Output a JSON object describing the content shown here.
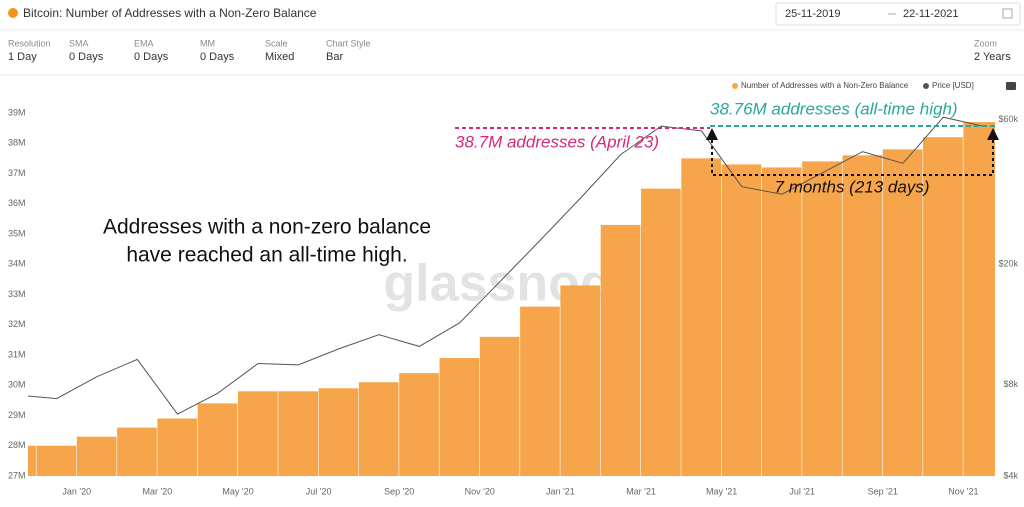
{
  "header": {
    "title": "Bitcoin: Number of Addresses with a Non-Zero Balance",
    "date_from": "25-11-2019",
    "date_to": "22-11-2021"
  },
  "controls": [
    {
      "label": "Resolution",
      "value": "1 Day"
    },
    {
      "label": "SMA",
      "value": "0 Days"
    },
    {
      "label": "EMA",
      "value": "0 Days"
    },
    {
      "label": "MM",
      "value": "0 Days"
    },
    {
      "label": "Scale",
      "value": "Mixed"
    },
    {
      "label": "Chart Style",
      "value": "Bar"
    },
    {
      "label": "Zoom",
      "value": "2 Years"
    }
  ],
  "chart_data": {
    "type": "bar",
    "x": [
      "2019-11",
      "2019-12",
      "2020-01",
      "2020-02",
      "2020-03",
      "2020-04",
      "2020-05",
      "2020-06",
      "2020-07",
      "2020-08",
      "2020-09",
      "2020-10",
      "2020-11",
      "2020-12",
      "2021-01",
      "2021-02",
      "2021-03",
      "2021-04",
      "2021-05",
      "2021-06",
      "2021-07",
      "2021-08",
      "2021-09",
      "2021-10",
      "2021-11"
    ],
    "series": [
      {
        "name": "Number of Addresses with a Non-Zero Balance",
        "color": "#f7a54a",
        "type": "bar",
        "values": [
          28000000,
          28000000,
          28300000,
          28600000,
          28900000,
          29400000,
          29800000,
          29800000,
          29900000,
          30100000,
          30400000,
          30900000,
          31600000,
          32600000,
          33300000,
          35300000,
          36500000,
          37500000,
          37300000,
          37200000,
          37400000,
          37600000,
          37800000,
          38200000,
          38700000
        ]
      },
      {
        "name": "Price [USD]",
        "color": "#555555",
        "type": "line",
        "axis": "y2",
        "values": [
          7400,
          7200,
          8500,
          9700,
          6400,
          7500,
          9400,
          9300,
          10500,
          11700,
          10700,
          12800,
          17500,
          24000,
          33000,
          46000,
          57000,
          55000,
          36000,
          34000,
          40000,
          47000,
          43000,
          61000,
          57000
        ]
      }
    ],
    "ylim": [
      27000000,
      39000000
    ],
    "yticks": [
      {
        "value": 27000000,
        "label": "27M"
      },
      {
        "value": 28000000,
        "label": "28M"
      },
      {
        "value": 29000000,
        "label": "29M"
      },
      {
        "value": 30000000,
        "label": "30M"
      },
      {
        "value": 31000000,
        "label": "31M"
      },
      {
        "value": 32000000,
        "label": "32M"
      },
      {
        "value": 33000000,
        "label": "33M"
      },
      {
        "value": 34000000,
        "label": "34M"
      },
      {
        "value": 35000000,
        "label": "35M"
      },
      {
        "value": 36000000,
        "label": "36M"
      },
      {
        "value": 37000000,
        "label": "37M"
      },
      {
        "value": 38000000,
        "label": "38M"
      },
      {
        "value": 39000000,
        "label": "39M"
      }
    ],
    "y2lim": [
      4000,
      63000
    ],
    "y2scale": "log",
    "y2ticks": [
      {
        "value": 4000,
        "label": "$4k"
      },
      {
        "value": 8000,
        "label": "$8k"
      },
      {
        "value": 20000,
        "label": "$20k"
      },
      {
        "value": 60000,
        "label": "$60k"
      }
    ],
    "xticks": [
      {
        "value": "2020-01",
        "label": "Jan '20"
      },
      {
        "value": "2020-03",
        "label": "Mar '20"
      },
      {
        "value": "2020-05",
        "label": "May '20"
      },
      {
        "value": "2020-07",
        "label": "Jul '20"
      },
      {
        "value": "2020-09",
        "label": "Sep '20"
      },
      {
        "value": "2020-11",
        "label": "Nov '20"
      },
      {
        "value": "2021-01",
        "label": "Jan '21"
      },
      {
        "value": "2021-03",
        "label": "Mar '21"
      },
      {
        "value": "2021-05",
        "label": "May '21"
      },
      {
        "value": "2021-07",
        "label": "Jul '21"
      },
      {
        "value": "2021-09",
        "label": "Sep '21"
      },
      {
        "value": "2021-11",
        "label": "Nov '21"
      }
    ],
    "annotations": [
      "38.76M addresses (all-time high)",
      "38.7M addresses (April 23)",
      "7 months (213 days)",
      "Addresses with a non-zero balance",
      "have reached an all-time high."
    ],
    "watermark": "glassnode"
  }
}
